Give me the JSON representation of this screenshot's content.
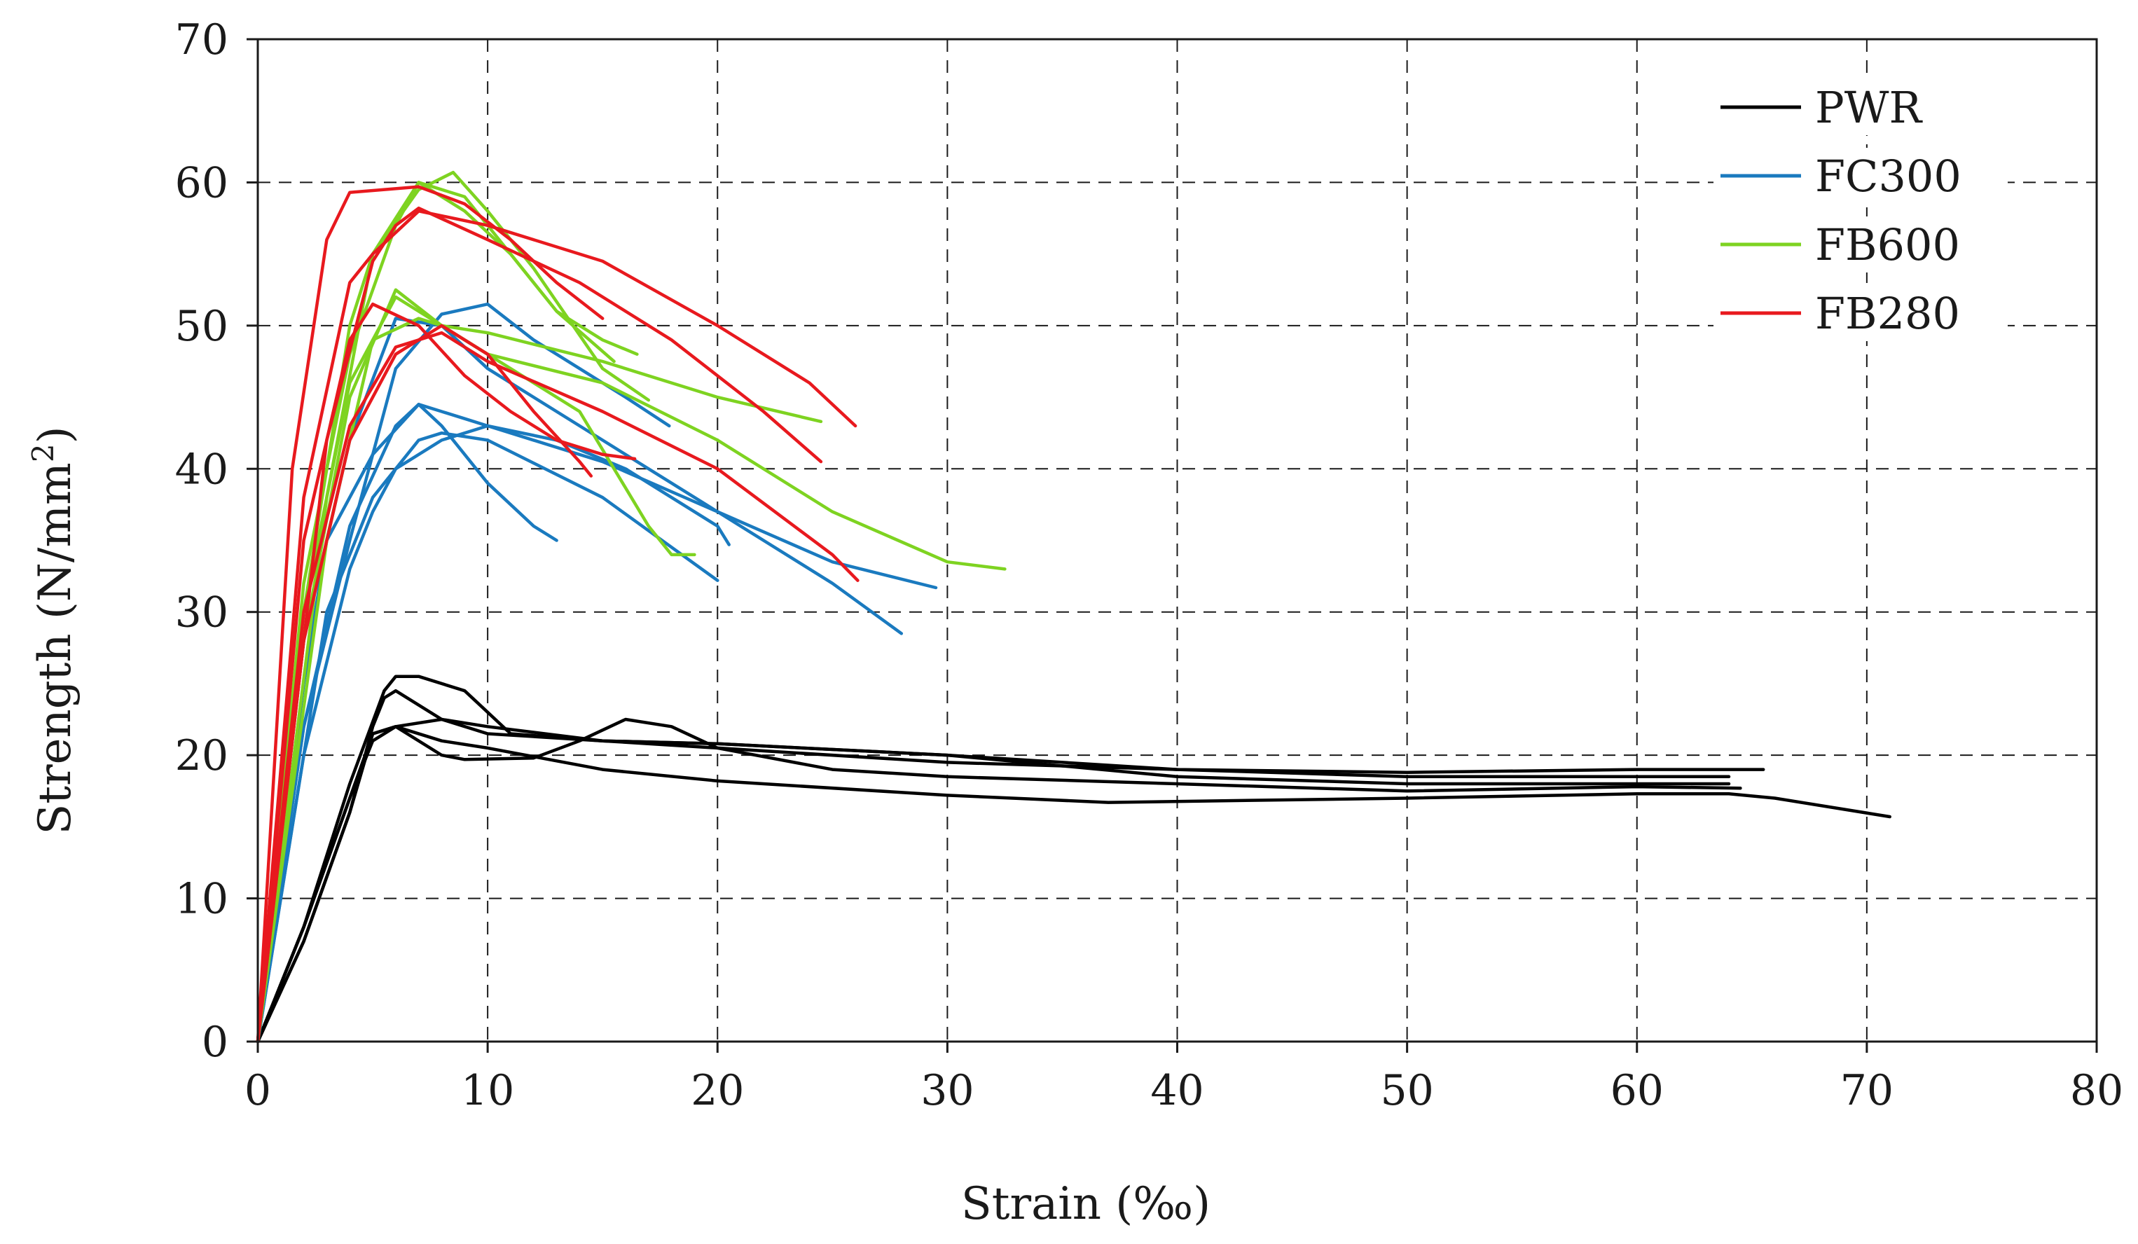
{
  "chart_data": {
    "type": "line",
    "title": "",
    "xlabel": "Strain (‰)",
    "ylabel_main": "Strength (N/mm",
    "ylabel_sup": "2",
    "ylabel_close": ")",
    "xlim": [
      0,
      80
    ],
    "ylim": [
      0,
      70
    ],
    "xticks": [
      "0",
      "10",
      "20",
      "30",
      "40",
      "50",
      "60",
      "70",
      "80"
    ],
    "yticks": [
      "0",
      "10",
      "20",
      "30",
      "40",
      "50",
      "60",
      "70"
    ],
    "xtick_values": [
      0,
      10,
      20,
      30,
      40,
      50,
      60,
      70,
      80
    ],
    "ytick_values": [
      0,
      10,
      20,
      30,
      40,
      50,
      60,
      70
    ],
    "grid": true,
    "legend_position": "top-right",
    "legend": [
      {
        "name": "PWR",
        "color": "#000000"
      },
      {
        "name": "FC300",
        "color": "#1a7abf"
      },
      {
        "name": "FB600",
        "color": "#7ed321"
      },
      {
        "name": "FB280",
        "color": "#e8191e"
      }
    ],
    "series": [
      {
        "group": "PWR",
        "points": [
          [
            0,
            0
          ],
          [
            2,
            7
          ],
          [
            4,
            16
          ],
          [
            5,
            22
          ],
          [
            5.5,
            24
          ],
          [
            6,
            24.5
          ],
          [
            8,
            22.5
          ],
          [
            10,
            21.5
          ],
          [
            15,
            21
          ],
          [
            20,
            20.5
          ],
          [
            30,
            19.5
          ],
          [
            40,
            19
          ],
          [
            50,
            18.5
          ],
          [
            60,
            18.5
          ],
          [
            64,
            18.5
          ]
        ]
      },
      {
        "group": "PWR",
        "points": [
          [
            0,
            0
          ],
          [
            2,
            8
          ],
          [
            4,
            18
          ],
          [
            5.5,
            24.5
          ],
          [
            6,
            25.5
          ],
          [
            7,
            25.5
          ],
          [
            9,
            24.5
          ],
          [
            10,
            23
          ],
          [
            11,
            21.5
          ],
          [
            15,
            21
          ],
          [
            20,
            20.8
          ],
          [
            30,
            20
          ],
          [
            40,
            19
          ],
          [
            50,
            18.8
          ],
          [
            60,
            19
          ],
          [
            65.5,
            19
          ]
        ]
      },
      {
        "group": "PWR",
        "points": [
          [
            0,
            0
          ],
          [
            2,
            8
          ],
          [
            4,
            17
          ],
          [
            5,
            21.5
          ],
          [
            6,
            22
          ],
          [
            8,
            20
          ],
          [
            9,
            19.7
          ],
          [
            12,
            19.8
          ],
          [
            14,
            21
          ],
          [
            16,
            22.5
          ],
          [
            18,
            22
          ],
          [
            20,
            20.5
          ],
          [
            25,
            19
          ],
          [
            30,
            18.5
          ],
          [
            40,
            18
          ],
          [
            50,
            17.5
          ],
          [
            60,
            17.8
          ],
          [
            64.5,
            17.7
          ]
        ]
      },
      {
        "group": "PWR",
        "points": [
          [
            0,
            0
          ],
          [
            2,
            8
          ],
          [
            4,
            17
          ],
          [
            5,
            21
          ],
          [
            6,
            22
          ],
          [
            8,
            22.5
          ],
          [
            10,
            22
          ],
          [
            15,
            21
          ],
          [
            20,
            20.8
          ],
          [
            30,
            20
          ],
          [
            40,
            18.5
          ],
          [
            50,
            18
          ],
          [
            60,
            18
          ],
          [
            64,
            18
          ]
        ]
      },
      {
        "group": "PWR",
        "points": [
          [
            0,
            0
          ],
          [
            2,
            7
          ],
          [
            4,
            16
          ],
          [
            5,
            21.5
          ],
          [
            6,
            22
          ],
          [
            8,
            21
          ],
          [
            10,
            20.5
          ],
          [
            15,
            19
          ],
          [
            20,
            18.2
          ],
          [
            30,
            17.2
          ],
          [
            37,
            16.7
          ],
          [
            50,
            17
          ],
          [
            60,
            17.3
          ],
          [
            64,
            17.3
          ],
          [
            66,
            17
          ],
          [
            71,
            15.7
          ]
        ]
      },
      {
        "group": "FC300",
        "points": [
          [
            0,
            0
          ],
          [
            2,
            25
          ],
          [
            3,
            35
          ],
          [
            5,
            41
          ],
          [
            7,
            44.5
          ],
          [
            8,
            44
          ],
          [
            9,
            43.5
          ],
          [
            10,
            43
          ],
          [
            15,
            40.5
          ],
          [
            20,
            37
          ],
          [
            25,
            33.5
          ],
          [
            29.5,
            31.7
          ]
        ]
      },
      {
        "group": "FC300",
        "points": [
          [
            0,
            0
          ],
          [
            2,
            28
          ],
          [
            4,
            42
          ],
          [
            6,
            50.5
          ],
          [
            8,
            50
          ],
          [
            10,
            47
          ],
          [
            15,
            42
          ],
          [
            18,
            39
          ],
          [
            20,
            37
          ],
          [
            22,
            35
          ],
          [
            25,
            32
          ],
          [
            28,
            28.5
          ]
        ]
      },
      {
        "group": "FC300",
        "points": [
          [
            0,
            0
          ],
          [
            2,
            20
          ],
          [
            4,
            33
          ],
          [
            5,
            37
          ],
          [
            6,
            40
          ],
          [
            8,
            42
          ],
          [
            10,
            43
          ],
          [
            13,
            42
          ],
          [
            16,
            40
          ],
          [
            20,
            36
          ],
          [
            20.5,
            34.7
          ]
        ]
      },
      {
        "group": "FC300",
        "points": [
          [
            0,
            0
          ],
          [
            2,
            22
          ],
          [
            4,
            36
          ],
          [
            6,
            43
          ],
          [
            7,
            44.5
          ],
          [
            8,
            43
          ],
          [
            9,
            41
          ],
          [
            10,
            39
          ],
          [
            12,
            36
          ],
          [
            13,
            35
          ]
        ]
      },
      {
        "group": "FC300",
        "points": [
          [
            0,
            0
          ],
          [
            2,
            22
          ],
          [
            4,
            35
          ],
          [
            6,
            47
          ],
          [
            8,
            50.8
          ],
          [
            10,
            51.5
          ],
          [
            12,
            49
          ],
          [
            14,
            47
          ],
          [
            16,
            45
          ],
          [
            17.9,
            43
          ]
        ]
      },
      {
        "group": "FC300",
        "points": [
          [
            0,
            0
          ],
          [
            3,
            30
          ],
          [
            5,
            38
          ],
          [
            7,
            42
          ],
          [
            8,
            42.5
          ],
          [
            10,
            42
          ],
          [
            15,
            38
          ],
          [
            20,
            32.2
          ]
        ]
      },
      {
        "group": "FB600",
        "points": [
          [
            0,
            0
          ],
          [
            2,
            30
          ],
          [
            4,
            50
          ],
          [
            5,
            55
          ],
          [
            7,
            59.5
          ],
          [
            8.5,
            60.7
          ],
          [
            10,
            58
          ],
          [
            12,
            54
          ],
          [
            15,
            47
          ],
          [
            17,
            44.8
          ]
        ]
      },
      {
        "group": "FB600",
        "points": [
          [
            0,
            0
          ],
          [
            2,
            28
          ],
          [
            4,
            45
          ],
          [
            6,
            52.5
          ],
          [
            8,
            50
          ],
          [
            10,
            48
          ],
          [
            14,
            44
          ],
          [
            17,
            36
          ],
          [
            18,
            34
          ],
          [
            19,
            34
          ]
        ]
      },
      {
        "group": "FB600",
        "points": [
          [
            0,
            0
          ],
          [
            2,
            32
          ],
          [
            4,
            48
          ],
          [
            6,
            57
          ],
          [
            7,
            60
          ],
          [
            9,
            58
          ],
          [
            11,
            55
          ],
          [
            13,
            51
          ],
          [
            15,
            49
          ],
          [
            16.5,
            48
          ]
        ]
      },
      {
        "group": "FB600",
        "points": [
          [
            0,
            0
          ],
          [
            2,
            30
          ],
          [
            4,
            46
          ],
          [
            6,
            52
          ],
          [
            8,
            50
          ],
          [
            10,
            49.5
          ],
          [
            15,
            47.5
          ],
          [
            20,
            45
          ],
          [
            24.5,
            43.3
          ]
        ]
      },
      {
        "group": "FB600",
        "points": [
          [
            0,
            0
          ],
          [
            3,
            38
          ],
          [
            5,
            55
          ],
          [
            7,
            60
          ],
          [
            9,
            59
          ],
          [
            11,
            55
          ],
          [
            13,
            51
          ],
          [
            15.5,
            47.5
          ]
        ]
      },
      {
        "group": "FB600",
        "points": [
          [
            0,
            0
          ],
          [
            3,
            35
          ],
          [
            5,
            49
          ],
          [
            7,
            50.5
          ],
          [
            8,
            50
          ],
          [
            10,
            48
          ],
          [
            15,
            46
          ],
          [
            20,
            42
          ],
          [
            25,
            37
          ],
          [
            30,
            33.5
          ],
          [
            32.5,
            33
          ]
        ]
      },
      {
        "group": "FB280",
        "points": [
          [
            0,
            0
          ],
          [
            1.5,
            40
          ],
          [
            3,
            56
          ],
          [
            4,
            59.3
          ],
          [
            7,
            59.7
          ],
          [
            9,
            58.5
          ],
          [
            11,
            56
          ],
          [
            13,
            53
          ],
          [
            15,
            50.5
          ]
        ]
      },
      {
        "group": "FB280",
        "points": [
          [
            0,
            0
          ],
          [
            2,
            35
          ],
          [
            4,
            49
          ],
          [
            5,
            51.5
          ],
          [
            7,
            50
          ],
          [
            9,
            46.5
          ],
          [
            11,
            44
          ],
          [
            13,
            42
          ],
          [
            15,
            41
          ],
          [
            16.4,
            40.7
          ]
        ]
      },
      {
        "group": "FB280",
        "points": [
          [
            0,
            0
          ],
          [
            2,
            38
          ],
          [
            4,
            53
          ],
          [
            5,
            55
          ],
          [
            7,
            58
          ],
          [
            10,
            57
          ],
          [
            15,
            54.5
          ],
          [
            20,
            50
          ],
          [
            24,
            46
          ],
          [
            26,
            43
          ]
        ]
      },
      {
        "group": "FB280",
        "points": [
          [
            0,
            0
          ],
          [
            3,
            42
          ],
          [
            5,
            54.5
          ],
          [
            6,
            57
          ],
          [
            7,
            58.2
          ],
          [
            10,
            56
          ],
          [
            14,
            53
          ],
          [
            18,
            49
          ],
          [
            22,
            44
          ],
          [
            24.5,
            40.5
          ]
        ]
      },
      {
        "group": "FB280",
        "points": [
          [
            0,
            0
          ],
          [
            2,
            28
          ],
          [
            4,
            42
          ],
          [
            6,
            48
          ],
          [
            8,
            50
          ],
          [
            10,
            48
          ],
          [
            12,
            44
          ],
          [
            14,
            40.5
          ],
          [
            14.5,
            39.5
          ]
        ]
      },
      {
        "group": "FB280",
        "points": [
          [
            0,
            0
          ],
          [
            2,
            30
          ],
          [
            4,
            43
          ],
          [
            6,
            48.5
          ],
          [
            8,
            49.5
          ],
          [
            10,
            47.5
          ],
          [
            15,
            44
          ],
          [
            20,
            40
          ],
          [
            25,
            34
          ],
          [
            26.1,
            32.2
          ]
        ]
      }
    ]
  }
}
